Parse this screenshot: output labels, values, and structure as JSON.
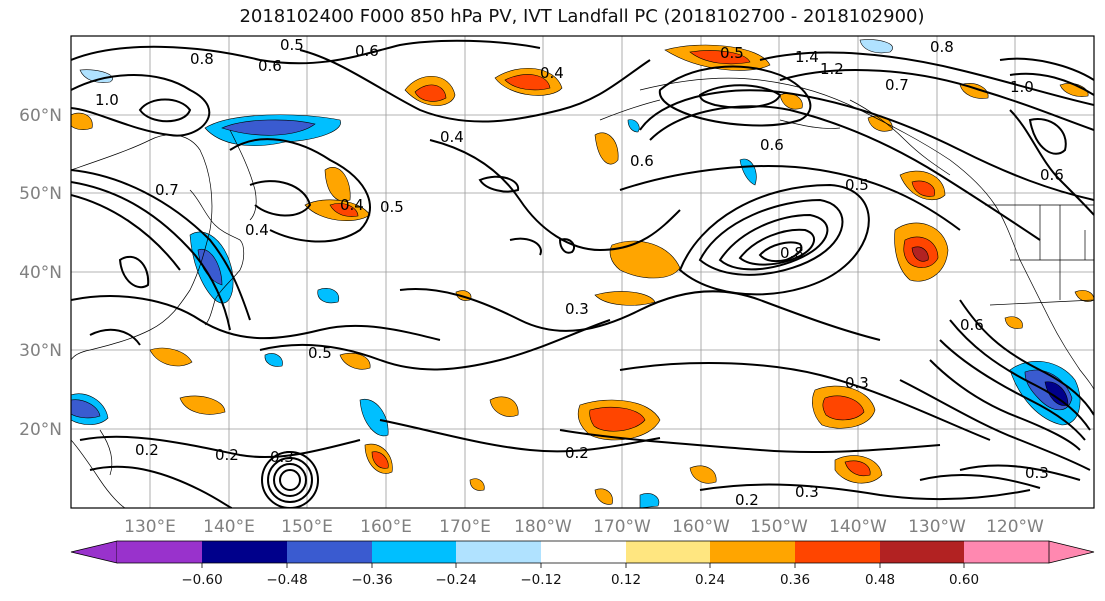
{
  "title": "2018102400 F000 850 hPa PV, IVT Landfall PC (2018102700 - 2018102900)",
  "map": {
    "lat_labels": [
      "60°N",
      "50°N",
      "40°N",
      "30°N",
      "20°N"
    ],
    "lon_labels": [
      "130°E",
      "140°E",
      "150°E",
      "160°E",
      "170°E",
      "180°W",
      "170°W",
      "160°W",
      "150°W",
      "140°W",
      "130°W",
      "120°W"
    ],
    "contour_labels": [
      "0.8",
      "0.6",
      "0.5",
      "0.6",
      "1.0",
      "0.7",
      "0.4",
      "0.4",
      "0.4",
      "0.5",
      "0.5",
      "0.4",
      "0.3",
      "0.8",
      "0.3",
      "0.5",
      "0.2",
      "0.2",
      "0.3",
      "0.2",
      "0.3",
      "0.3",
      "0.2",
      "0.6",
      "0.7",
      "1.4",
      "1.2",
      "0.6",
      "0.5",
      "0.6",
      "1.0",
      "0.8",
      "0.6"
    ]
  },
  "colorbar": {
    "tick_labels": [
      "−0.60",
      "−0.48",
      "−0.36",
      "−0.24",
      "−0.12",
      "0.12",
      "0.24",
      "0.36",
      "0.48",
      "0.60"
    ],
    "colors": [
      "#9932cc",
      "#00008b",
      "#3a5bd0",
      "#00bfff",
      "#b0e2ff",
      "#ffffff",
      "#ffe680",
      "#ffa500",
      "#ff4500",
      "#b22222",
      "#ff88b0"
    ]
  }
}
